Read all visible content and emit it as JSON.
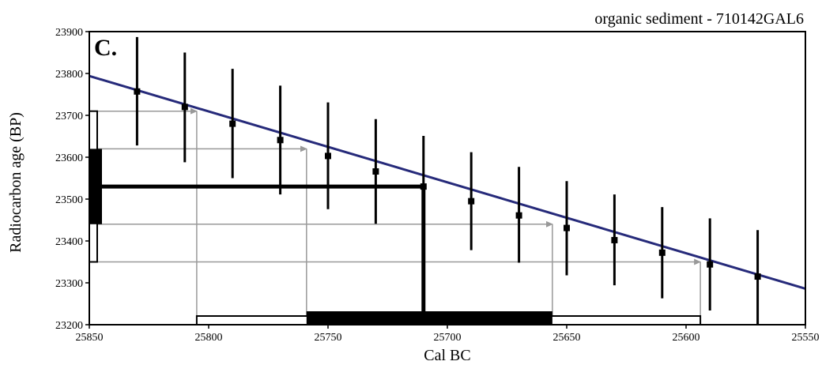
{
  "chart_data": {
    "type": "scatter",
    "panel_label": "C.",
    "title": "organic sediment - 710142GAL6",
    "xlabel": "Cal BC",
    "ylabel": "Radiocarbon age (BP)",
    "xlim": [
      25850,
      25550
    ],
    "ylim": [
      23200,
      23900
    ],
    "x_ticks": [
      25850,
      25800,
      25750,
      25700,
      25650,
      25600,
      25550
    ],
    "y_ticks": [
      23200,
      23300,
      23400,
      23500,
      23600,
      23700,
      23800,
      23900
    ],
    "grid": false,
    "calibration_line": {
      "color": "#262a7a",
      "points": [
        [
          25850,
          23794
        ],
        [
          25550,
          23286
        ]
      ]
    },
    "points": [
      {
        "x": 25830,
        "y": 23757,
        "err_low": 23628,
        "err_high": 23887
      },
      {
        "x": 25810,
        "y": 23720,
        "err_low": 23588,
        "err_high": 23850
      },
      {
        "x": 25790,
        "y": 23680,
        "err_low": 23550,
        "err_high": 23811
      },
      {
        "x": 25770,
        "y": 23641,
        "err_low": 23511,
        "err_high": 23771
      },
      {
        "x": 25750,
        "y": 23603,
        "err_low": 23476,
        "err_high": 23731
      },
      {
        "x": 25730,
        "y": 23566,
        "err_low": 23441,
        "err_high": 23691
      },
      {
        "x": 25710,
        "y": 23530,
        "err_low": 23410,
        "err_high": 23651
      },
      {
        "x": 25690,
        "y": 23495,
        "err_low": 23378,
        "err_high": 23612
      },
      {
        "x": 25670,
        "y": 23461,
        "err_low": 23348,
        "err_high": 23577
      },
      {
        "x": 25650,
        "y": 23431,
        "err_low": 23318,
        "err_high": 23543
      },
      {
        "x": 25630,
        "y": 23402,
        "err_low": 23294,
        "err_high": 23511
      },
      {
        "x": 25610,
        "y": 23372,
        "err_low": 23263,
        "err_high": 23481
      },
      {
        "x": 25590,
        "y": 23344,
        "err_low": 23234,
        "err_high": 23454
      },
      {
        "x": 25570,
        "y": 23315,
        "err_low": 23200,
        "err_high": 23426
      }
    ],
    "measured_age": {
      "mean": 23530,
      "sigma1": [
        23440,
        23620
      ],
      "sigma2": [
        23350,
        23710
      ],
      "calibrated_x": 25710
    },
    "calibrated_range": {
      "sigma1": [
        25759,
        25656
      ],
      "sigma2": [
        25805,
        25594
      ]
    },
    "colors": {
      "line": "#262a7a",
      "arrows": "#999999",
      "marks": "#000000"
    }
  }
}
